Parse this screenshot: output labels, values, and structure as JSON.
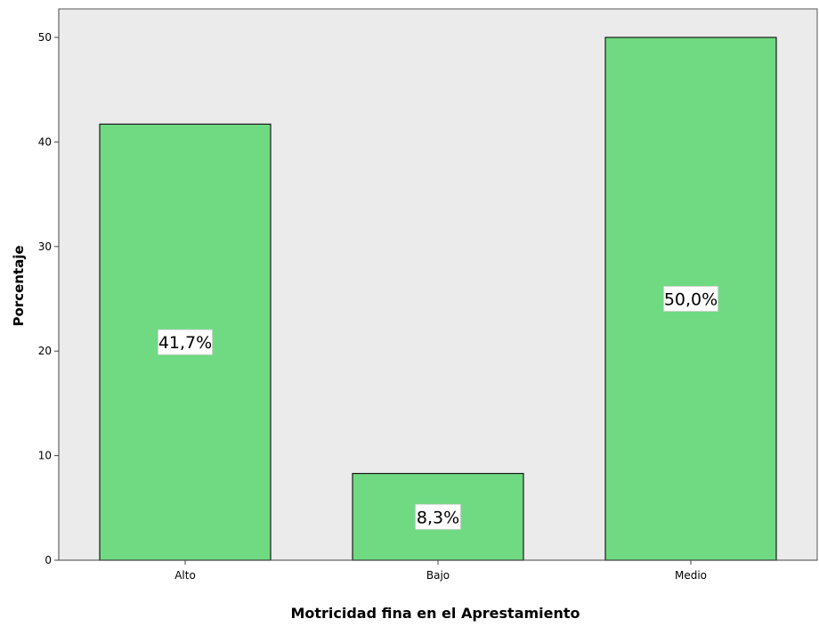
{
  "chart_data": {
    "type": "bar",
    "categories": [
      "Alto",
      "Bajo",
      "Medio"
    ],
    "values": [
      41.7,
      8.3,
      50.0
    ],
    "data_labels": [
      "41,7%",
      "8,3%",
      "50,0%"
    ],
    "xlabel": "Motricidad fina en el Aprestamiento",
    "ylabel": "Porcentaje",
    "ylim": [
      0,
      50
    ],
    "yticks": [
      0,
      10,
      20,
      30,
      40,
      50
    ],
    "ytick_labels": [
      "0",
      "10",
      "20",
      "30",
      "40",
      "50"
    ],
    "grid": false,
    "legend": "none",
    "colors": {
      "plot_background": "#ebebeb",
      "bar_fill": "#70da82",
      "bar_stroke": "#1a1a1a",
      "label_box": "#ffffff",
      "axis": "#444444",
      "text": "#000000"
    }
  }
}
